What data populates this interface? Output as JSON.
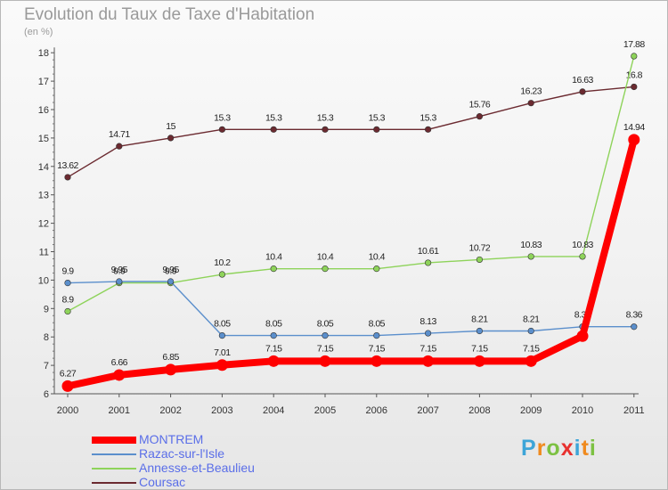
{
  "header": {
    "title": "Evolution du Taux de Taxe d'Habitation",
    "unit": "(en %)"
  },
  "chart_data": {
    "type": "line",
    "title": "Evolution du Taux de Taxe d'Habitation",
    "ylabel": "(en %)",
    "xlabel": "",
    "ylim": [
      6,
      18
    ],
    "yticks": [
      6,
      7,
      8,
      9,
      10,
      11,
      12,
      13,
      14,
      15,
      16,
      17,
      18
    ],
    "ytick_labels": [
      "6",
      "7",
      "8",
      "9",
      "10",
      "11",
      "12",
      "13",
      "14",
      "15",
      "16",
      "17",
      "18"
    ],
    "x": [
      "2000",
      "2001",
      "2002",
      "2003",
      "2004",
      "2005",
      "2006",
      "2007",
      "2008",
      "2009",
      "2010",
      "2011"
    ],
    "series": [
      {
        "name": "Coursac",
        "color": "#6b2a30",
        "values": [
          13.62,
          14.71,
          15,
          15.3,
          15.3,
          15.3,
          15.3,
          15.3,
          15.76,
          16.23,
          16.63,
          16.8
        ],
        "labels": [
          "13.62",
          "14.71",
          "15",
          "15.3",
          "15.3",
          "15.3",
          "15.3",
          "15.3",
          "15.76",
          "16.23",
          "16.63",
          "16.8"
        ]
      },
      {
        "name": "Annesse-et-Beaulieu",
        "color": "#8ed35a",
        "values": [
          8.9,
          9.9,
          9.9,
          10.2,
          10.4,
          10.4,
          10.4,
          10.61,
          10.72,
          10.83,
          10.83,
          17.88
        ],
        "labels": [
          "8.9",
          "9.9",
          "9.9",
          "10.2",
          "10.4",
          "10.4",
          "10.4",
          "10.61",
          "10.72",
          "10.83",
          "10.83",
          "17.88"
        ]
      },
      {
        "name": "Razac-sur-l'Isle",
        "color": "#5b8fcc",
        "values": [
          9.9,
          9.95,
          9.95,
          8.05,
          8.05,
          8.05,
          8.05,
          8.13,
          8.21,
          8.21,
          8.36,
          8.36
        ],
        "labels": [
          "9.9",
          "9.95",
          "9.95",
          "8.05",
          "8.05",
          "8.05",
          "8.05",
          "8.13",
          "8.21",
          "8.21",
          "8.36",
          "8.36"
        ]
      },
      {
        "name": "MONTREM",
        "color": "#ff0000",
        "values": [
          6.27,
          6.66,
          6.85,
          7.01,
          7.15,
          7.15,
          7.15,
          7.15,
          7.15,
          7.15,
          8.03,
          14.94
        ],
        "labels": [
          "6.27",
          "6.66",
          "6.85",
          "7.01",
          "7.15",
          "7.15",
          "7.15",
          "7.15",
          "7.15",
          "7.15",
          "",
          "14.94"
        ]
      }
    ],
    "legend": [
      {
        "name": "MONTREM",
        "color": "#ff0000"
      },
      {
        "name": "Razac-sur-l'Isle",
        "color": "#5b8fcc"
      },
      {
        "name": "Annesse-et-Beaulieu",
        "color": "#8ed35a"
      },
      {
        "name": "Coursac",
        "color": "#6b2a30"
      }
    ],
    "legend_position": "bottom-left",
    "grid": false
  },
  "logo": {
    "letters": [
      "P",
      "r",
      "o",
      "x",
      "i",
      "t",
      "i"
    ],
    "colors": [
      "#3da5d8",
      "#f08a1e",
      "#7cc142",
      "#e8312f",
      "#3da5d8",
      "#f08a1e",
      "#7cc142"
    ]
  }
}
